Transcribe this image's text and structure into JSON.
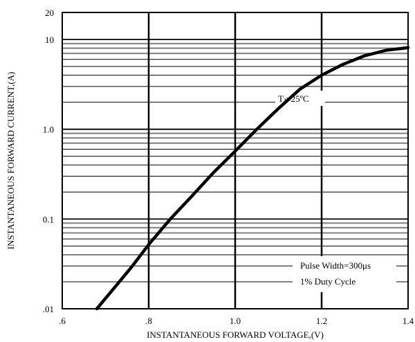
{
  "chart_data": {
    "type": "line",
    "title": "",
    "xlabel": "INSTANTANEOUS FORWARD VOLTAGE,(V)",
    "ylabel": "INSTANTANEOUS FORWARD CURRENT,(A)",
    "xlim": [
      0.6,
      1.4
    ],
    "ylim": [
      0.01,
      20
    ],
    "yscale": "log",
    "grid": true,
    "x_ticks": [
      {
        "value": 0.6,
        "label": ".6"
      },
      {
        "value": 0.8,
        "label": ".8"
      },
      {
        "value": 1.0,
        "label": "1.0"
      },
      {
        "value": 1.2,
        "label": "1.2"
      },
      {
        "value": 1.4,
        "label": "1.4"
      }
    ],
    "y_ticks": [
      {
        "value": 0.01,
        "label": ".01"
      },
      {
        "value": 0.1,
        "label": "0.1"
      },
      {
        "value": 1.0,
        "label": "1.0"
      },
      {
        "value": 10,
        "label": "10"
      },
      {
        "value": 20,
        "label": "20"
      }
    ],
    "series": [
      {
        "x": [
          0.68,
          0.72,
          0.76,
          0.8,
          0.85,
          0.9,
          0.95,
          1.0,
          1.05,
          1.1,
          1.15,
          1.2,
          1.25,
          1.3,
          1.35,
          1.4
        ],
        "y": [
          0.01,
          0.017,
          0.029,
          0.052,
          0.1,
          0.18,
          0.33,
          0.57,
          1.0,
          1.7,
          2.8,
          4.0,
          5.3,
          6.6,
          7.6,
          8.1
        ]
      }
    ],
    "annotations": [
      {
        "sub": "J"
      },
      {
        "text": "Pulse Width=300μs"
      },
      {
        "text": "1% Duty Cycle"
      }
    ],
    "temp_label": {
      "prefix": "T",
      "suffix": "=25ºC"
    }
  }
}
